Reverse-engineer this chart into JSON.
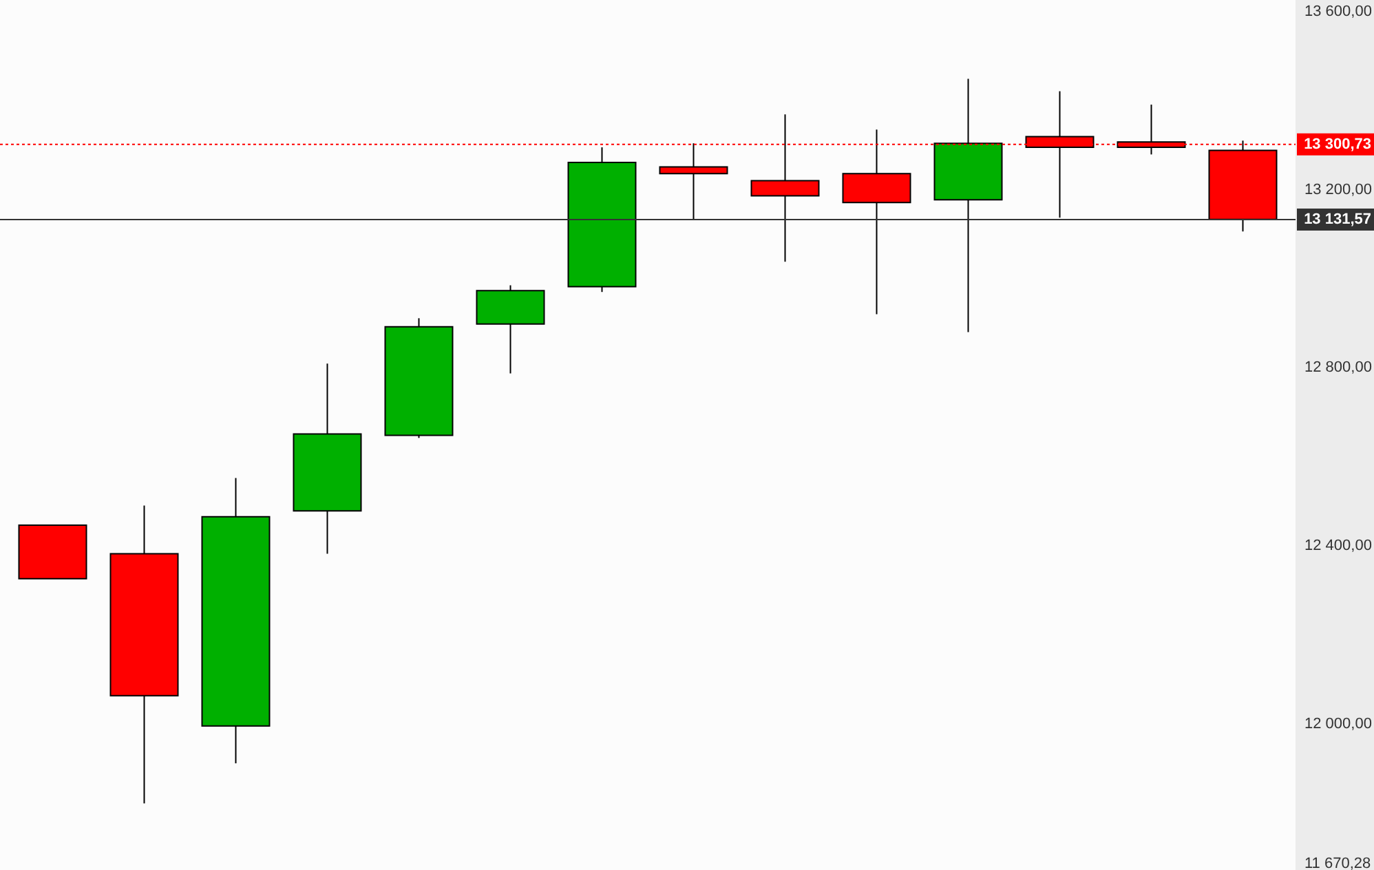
{
  "chart_data": {
    "type": "candlestick",
    "categories": [
      null,
      null,
      null,
      null,
      null,
      null,
      null,
      null,
      null,
      null,
      null,
      null,
      null,
      null
    ],
    "ohlc": [
      [
        12445,
        12445,
        12325,
        12325
      ],
      [
        12381,
        12489,
        11820,
        12062
      ],
      [
        11994,
        12551,
        11910,
        12464
      ],
      [
        12477,
        12808,
        12381,
        12650
      ],
      [
        12647,
        12910,
        12641,
        12891
      ],
      [
        12897,
        12984,
        12786,
        12972
      ],
      [
        12981,
        13294,
        12969,
        13260
      ],
      [
        13250,
        13303,
        13133,
        13235
      ],
      [
        13219,
        13368,
        13037,
        13185
      ],
      [
        13235,
        13334,
        12919,
        13170
      ],
      [
        13176,
        13448,
        12879,
        13303
      ],
      [
        13318,
        13420,
        13136,
        13294
      ],
      [
        13306,
        13390,
        13278,
        13294
      ],
      [
        13287,
        13309,
        13105,
        13132
      ]
    ],
    "colors": [
      "#ff0000",
      "#ff0000",
      "#00b000",
      "#00b000",
      "#00b000",
      "#00b000",
      "#00b000",
      "#ff0000",
      "#ff0000",
      "#ff0000",
      "#00b000",
      "#ff0000",
      "#ff0000",
      "#ff0000"
    ],
    "ylim": [
      11670.28,
      13625
    ],
    "yticks": [
      {
        "value": 11670.28,
        "label": "11 670,28"
      },
      {
        "value": 12000,
        "label": "12 000,00"
      },
      {
        "value": 12400,
        "label": "12 400,00"
      },
      {
        "value": 12800,
        "label": "12 800,00"
      },
      {
        "value": 13200,
        "label": "13 200,00"
      },
      {
        "value": 13600,
        "label": "13 600,00"
      }
    ],
    "tick_labels": "y",
    "grid": false,
    "ref_lines": [
      {
        "axis": "y",
        "value": 13300.73,
        "label": "13 300,73",
        "color": "#ff0000",
        "line_style": "dotted"
      },
      {
        "axis": "y",
        "value": 13131.57,
        "label": "13 131,57",
        "color": "#333333",
        "line_style": "solid"
      }
    ]
  }
}
